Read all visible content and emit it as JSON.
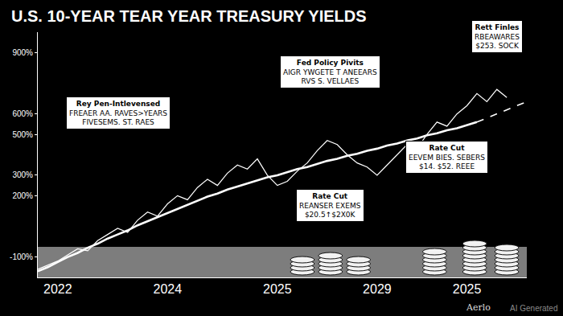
{
  "chart_data": {
    "type": "line",
    "title": "U.S. 10-YEAR TEAR YEAR TREASURY YIELDS",
    "categories": [
      null,
      null,
      "2022",
      null,
      null,
      null,
      null,
      null,
      null,
      null,
      null,
      null,
      null,
      "2024",
      null,
      null,
      null,
      null,
      null,
      null,
      null,
      null,
      null,
      null,
      "2025",
      null,
      null,
      null,
      null,
      null,
      null,
      null,
      null,
      null,
      "2029",
      null,
      null,
      null,
      null,
      null,
      null,
      null,
      null,
      "2025",
      null,
      null,
      null,
      null,
      null,
      null
    ],
    "series": [
      {
        "color": "#ffffff",
        "line_style": "solid",
        "values": [
          -160,
          -140,
          -120,
          -90,
          -60,
          -70,
          -20,
          10,
          40,
          20,
          80,
          120,
          100,
          160,
          200,
          180,
          240,
          280,
          250,
          310,
          350,
          330,
          380,
          300,
          250,
          270,
          320,
          360,
          420,
          470,
          450,
          400,
          360,
          340,
          300,
          350,
          400,
          450,
          430,
          500,
          560,
          540,
          600,
          640,
          700,
          660,
          720,
          680,
          null,
          null
        ]
      },
      {
        "color": "#ffffff",
        "line_style": "solid",
        "values": [
          -170,
          -150,
          -125,
          -100,
          -80,
          -55,
          -35,
          -10,
          10,
          30,
          55,
          75,
          95,
          115,
          135,
          155,
          175,
          195,
          210,
          230,
          245,
          260,
          275,
          290,
          300,
          315,
          330,
          340,
          355,
          370,
          380,
          395,
          405,
          420,
          430,
          445,
          455,
          470,
          480,
          495,
          505,
          520,
          530,
          545,
          560,
          null,
          null,
          null,
          null,
          null
        ]
      },
      {
        "color": "#ffffff",
        "line_style": "dashed",
        "values": [
          null,
          null,
          null,
          null,
          null,
          null,
          null,
          null,
          null,
          null,
          null,
          null,
          null,
          null,
          null,
          null,
          null,
          null,
          null,
          null,
          null,
          null,
          null,
          null,
          null,
          null,
          null,
          null,
          null,
          null,
          null,
          null,
          null,
          null,
          null,
          null,
          null,
          null,
          null,
          null,
          null,
          null,
          null,
          null,
          560,
          580,
          600,
          620,
          640,
          660
        ]
      }
    ],
    "ylim": [
      -200,
      1000
    ],
    "yticks": [
      {
        "value": -100,
        "label": "-100%"
      },
      {
        "value": 200,
        "label": "200%"
      },
      {
        "value": 300,
        "label": "300%"
      },
      {
        "value": 500,
        "label": "500%"
      },
      {
        "value": 600,
        "label": "600%"
      },
      {
        "value": 900,
        "label": "900%"
      }
    ],
    "grid": false,
    "annotations": [
      {
        "lines": [
          "Rey Pen-Intlevensed",
          "FREAER AA. RAVES>YEARS",
          "FIVESEMS. ST. RAES"
        ]
      },
      {
        "lines": [
          "Fed Policy Pivits",
          "AIGR YWGETE T ANEEARS",
          "RVS S. VELLAES"
        ]
      },
      {
        "lines": [
          "Rett Finles",
          "RBEAWARES",
          "$253. SOCK"
        ]
      },
      {
        "lines": [
          "Rate Cut",
          "REANSER EXEMS",
          "$20.5↑$2X0K"
        ]
      },
      {
        "lines": [
          "Rate Cut",
          "EEVEM BIES. SEBERS",
          "$14. $52. REEE"
        ]
      }
    ],
    "credits": [
      "Aerlo",
      "AI Generated"
    ]
  }
}
